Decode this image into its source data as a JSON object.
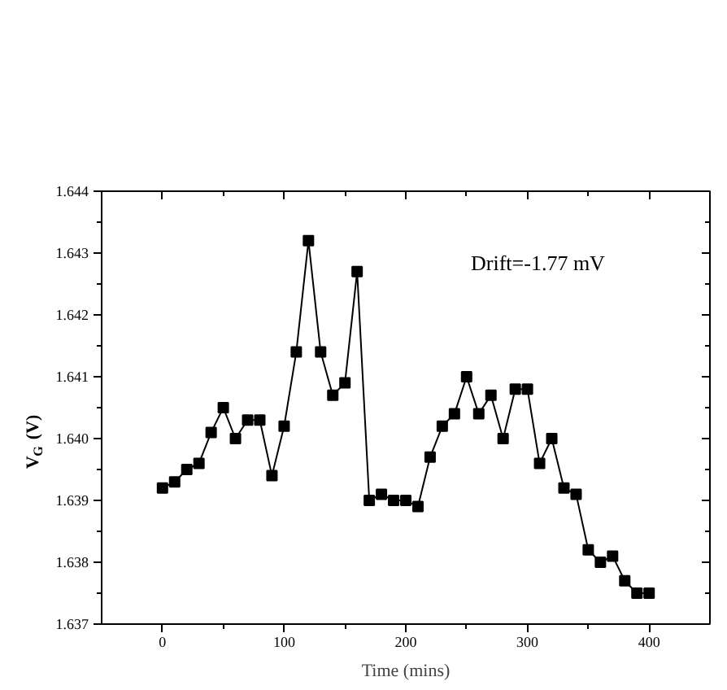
{
  "chart_data": {
    "type": "line",
    "xlabel": "Time (mins)",
    "ylabel": "V$_{G}$ (V)",
    "annotations": [
      "Drift=-1.77 mV"
    ],
    "x": [
      0,
      10,
      20,
      30,
      40,
      50,
      60,
      70,
      80,
      90,
      100,
      110,
      120,
      130,
      140,
      150,
      160,
      170,
      180,
      190,
      200,
      210,
      220,
      230,
      240,
      250,
      260,
      270,
      280,
      290,
      300,
      310,
      320,
      330,
      340,
      350,
      360,
      370,
      380,
      390,
      400
    ],
    "series": [
      {
        "color": "#000000",
        "values": [
          1.6392,
          1.6393,
          1.6395,
          1.6396,
          1.6401,
          1.6405,
          1.64,
          1.6403,
          1.6403,
          1.6394,
          1.6402,
          1.6414,
          1.6432,
          1.6414,
          1.6407,
          1.6409,
          1.6427,
          1.639,
          1.6391,
          1.639,
          1.639,
          1.6389,
          1.6397,
          1.6402,
          1.6404,
          1.641,
          1.6404,
          1.6407,
          1.64,
          1.6408,
          1.6408,
          1.6396,
          1.64,
          1.6392,
          1.6391,
          1.6382,
          1.638,
          1.6381,
          1.6377,
          1.6375,
          1.6375
        ]
      }
    ],
    "xlim": [
      -50,
      450
    ],
    "ylim": [
      1.637,
      1.644
    ],
    "xticks": [
      0,
      {
        "value": 50,
        "label": null
      },
      100,
      {
        "value": 150,
        "label": null
      },
      200,
      {
        "value": 250,
        "label": null
      },
      300,
      {
        "value": 350,
        "label": null
      },
      400
    ],
    "yticks": [
      1.637,
      {
        "value": 1.6375,
        "label": null
      },
      1.638,
      {
        "value": 1.6385,
        "label": null
      },
      1.639,
      {
        "value": 1.6395,
        "label": null
      },
      {
        "value": 1.64,
        "label": "1.640"
      },
      {
        "value": 1.6405,
        "label": null
      },
      1.641,
      {
        "value": 1.6415,
        "label": null
      },
      1.642,
      {
        "value": 1.6425,
        "label": null
      },
      1.643,
      {
        "value": 1.6435,
        "label": null
      },
      1.644
    ],
    "marker": "square",
    "line_style": "solid"
  }
}
